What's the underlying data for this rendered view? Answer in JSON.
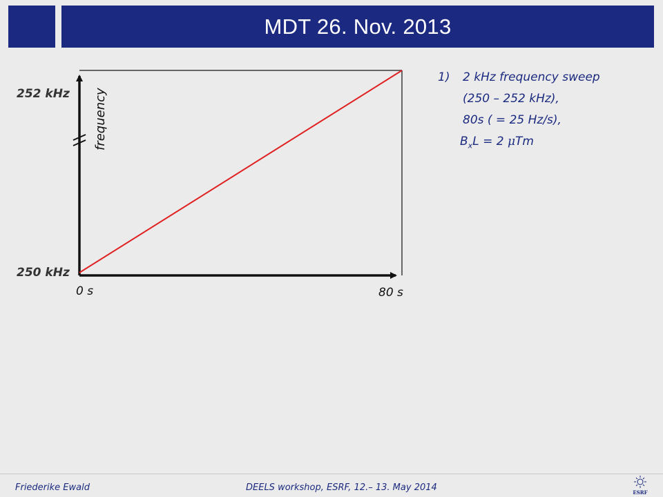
{
  "slide": {
    "title": "MDT 26. Nov. 2013"
  },
  "chart_data": {
    "type": "line",
    "y_axis_label": "frequency",
    "y_tick_labels": [
      "250 kHz",
      "252 kHz"
    ],
    "x_tick_labels": [
      "0 s",
      "80 s"
    ],
    "x_range": [
      0,
      80
    ],
    "y_range": [
      250,
      252
    ],
    "series": [
      {
        "x": [
          0,
          80
        ],
        "y": [
          250,
          252
        ]
      }
    ],
    "axis_break": "y",
    "colors": {
      "series": "#e02020",
      "axes": "#111111",
      "frame": "#666666"
    }
  },
  "notes": {
    "number": "1)",
    "line1": "2 kHz frequency sweep",
    "line2": "(250 – 252 kHz),",
    "line3": "80s ( = 25 Hz/s),",
    "line4_b": "B",
    "line4_sub": "x",
    "line4_mid": "L = 2 ",
    "line4_mu": "μ",
    "line4_end": "Tm"
  },
  "footer": {
    "author": "Friederike Ewald",
    "event": "DEELS workshop, ESRF, 12.– 13. May 2014",
    "logo_text": "ESRF"
  },
  "theme": {
    "accent": "#1b2a80",
    "background": "#ebebeb"
  }
}
